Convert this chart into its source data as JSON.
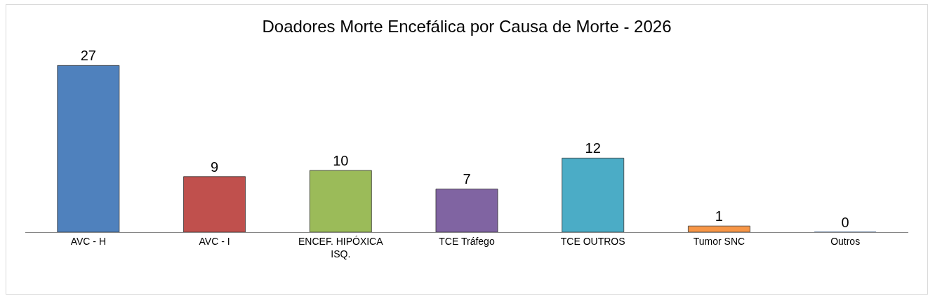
{
  "chart_data": {
    "type": "bar",
    "title": "Doadores Morte Encefálica por Causa de Morte - 2026",
    "categories": [
      "AVC - H",
      "AVC - I",
      "ENCEF. HIPÓXICA ISQ.",
      "TCE Tráfego",
      "TCE OUTROS",
      "Tumor SNC",
      "Outros"
    ],
    "values": [
      27,
      9,
      10,
      7,
      12,
      1,
      0
    ],
    "colors": [
      "#4f81bd",
      "#c0504d",
      "#9bbb59",
      "#8064a2",
      "#4bacc6",
      "#f79646",
      "#2c4d75"
    ],
    "data_labels": true,
    "legend": false
  }
}
